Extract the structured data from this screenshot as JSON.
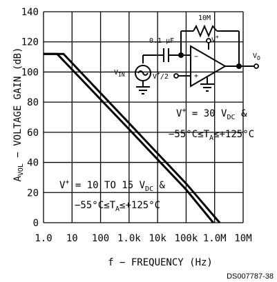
{
  "chart_data": {
    "type": "line",
    "xscale": "log",
    "xlim": [
      1,
      10000000
    ],
    "ylim": [
      0,
      140
    ],
    "grid": true,
    "xlabel": "f - FREQUENCY (Hz)",
    "ylabel": "AVOL - VOLTAGE GAIN (dB)",
    "x_ticks": [
      1,
      10,
      100,
      1000,
      10000,
      100000,
      1000000,
      10000000
    ],
    "x_tick_labels": [
      "1.0",
      "10",
      "100",
      "1.0k",
      "10k",
      "100k",
      "1.0M",
      "10M"
    ],
    "y_ticks": [
      0,
      20,
      40,
      60,
      80,
      100,
      120,
      140
    ],
    "y_tick_labels": [
      "0",
      "20",
      "40",
      "60",
      "80",
      "100",
      "120",
      "140"
    ],
    "series": [
      {
        "name": "V+ = 30 VDC & -55°C≤TA≤+125°C",
        "x": [
          1,
          5,
          1000,
          10000,
          100000,
          1500000
        ],
        "y": [
          112,
          112,
          66,
          46,
          26,
          0
        ]
      },
      {
        "name": "V+ = 10 TO 15 VDC & -55°C≤TA≤+125°C",
        "x": [
          1,
          3,
          1000,
          10000,
          100000,
          900000
        ],
        "y": [
          112,
          112,
          62,
          42,
          22,
          0
        ]
      }
    ],
    "annotations": {
      "cond_30v_line1": "V+ = 30 VDC &",
      "cond_30v_line2": "-55°C≤TA≤+125°C",
      "cond_15v_line1": "V+ = 10 TO 15 VDC &",
      "cond_15v_line2": "-55°C≤TA≤+125°C"
    }
  },
  "circuit": {
    "resistor_label": "10M",
    "capacitor_label": "0.1 μF",
    "input_label": "VIN",
    "bias_label": "V+/2",
    "supply_label": "V+",
    "output_label": "VO",
    "minus_sign": "−",
    "plus_sign": "+"
  },
  "doc_code": "DS007787-38"
}
